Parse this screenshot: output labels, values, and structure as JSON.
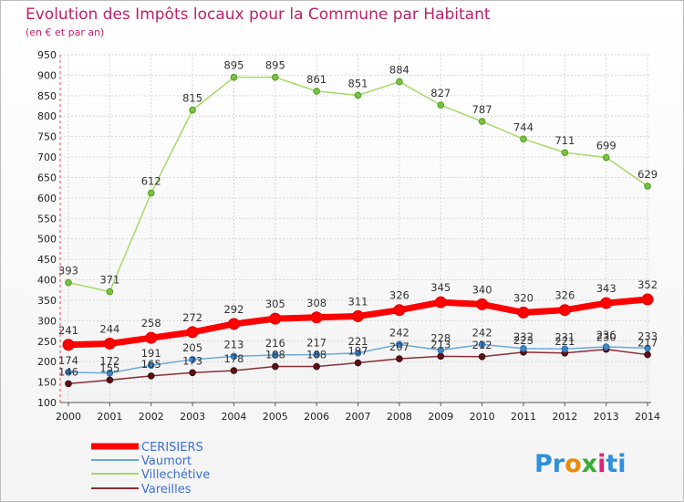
{
  "chart_data": {
    "type": "line",
    "title": "Evolution des Impôts locaux pour la Commune par Habitant",
    "subtitle": "(en € et par an)",
    "x": [
      "2000",
      "2001",
      "2002",
      "2003",
      "2004",
      "2005",
      "2006",
      "2007",
      "2008",
      "2009",
      "2010",
      "2011",
      "2012",
      "2013",
      "2014"
    ],
    "y_ticks": [
      100,
      150,
      200,
      250,
      300,
      350,
      400,
      450,
      500,
      550,
      600,
      650,
      700,
      750,
      800,
      850,
      900,
      950
    ],
    "ylim": [
      100,
      950
    ],
    "grid": true,
    "legend_position": "bottom-left",
    "series": [
      {
        "name": "CERISIERS",
        "color": "#ff0000",
        "values": [
          241,
          244,
          258,
          272,
          292,
          305,
          308,
          311,
          326,
          345,
          340,
          320,
          326,
          343,
          352
        ]
      },
      {
        "name": "Vaumort",
        "color": "#5b9bd5",
        "values": [
          174,
          172,
          191,
          205,
          213,
          216,
          217,
          221,
          242,
          228,
          242,
          232,
          231,
          236,
          233
        ]
      },
      {
        "name": "Villechétive",
        "color": "#92d050",
        "values": [
          393,
          371,
          612,
          815,
          895,
          895,
          861,
          851,
          884,
          827,
          787,
          744,
          711,
          699,
          629
        ]
      },
      {
        "name": "Vareilles",
        "color": "#6b1a22",
        "values": [
          146,
          155,
          165,
          173,
          178,
          188,
          188,
          197,
          207,
          213,
          212,
          223,
          221,
          230,
          217
        ]
      }
    ]
  },
  "logo": {
    "text": "Proxiti"
  }
}
